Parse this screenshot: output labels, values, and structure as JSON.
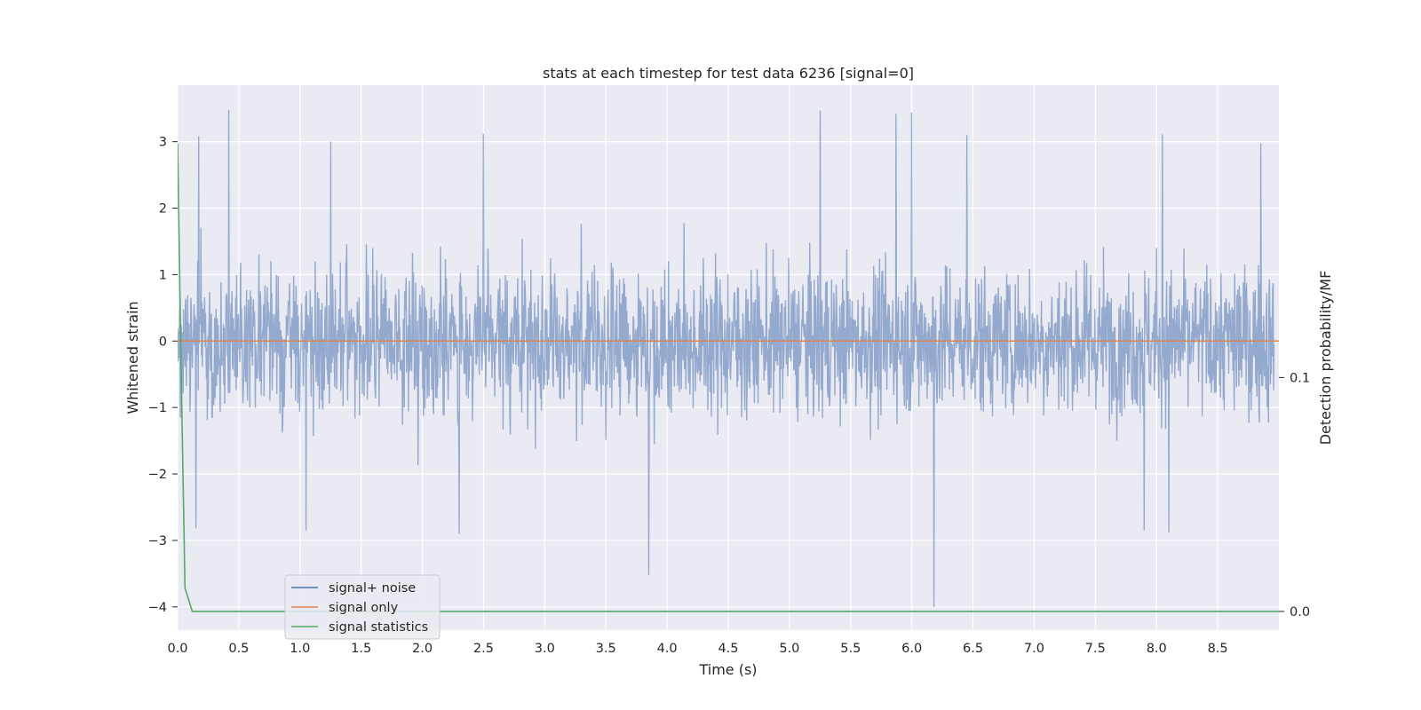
{
  "chart_data": {
    "type": "line",
    "title": "stats at each timestep for test data 6236 [signal=0]",
    "xlabel": "Time (s)",
    "ylabel": "Whitened strain",
    "y2label": "Detection probability/MF",
    "xlim": [
      0.0,
      9.0
    ],
    "ylim": [
      -4.35,
      3.85
    ],
    "y2lim": [
      -0.008,
      0.225
    ],
    "xticks": [
      "0.0",
      "0.5",
      "1.0",
      "1.5",
      "2.0",
      "2.5",
      "3.0",
      "3.5",
      "4.0",
      "4.5",
      "5.0",
      "5.5",
      "6.0",
      "6.5",
      "7.0",
      "7.5",
      "8.0",
      "8.5"
    ],
    "yticks": [
      "3",
      "2",
      "1",
      "0",
      "−1",
      "−2",
      "−3",
      "−4"
    ],
    "y2ticks": [
      "0.1",
      "0.0"
    ],
    "grid": true,
    "legend_position": "lower-left",
    "series": [
      {
        "name": "signal+ noise",
        "color": "#4c72b0",
        "axis": "left",
        "n_points": 8192,
        "peaks": [
          {
            "x": 0.42,
            "y": 3.48
          },
          {
            "x": 0.17,
            "y": 3.08
          },
          {
            "x": 1.25,
            "y": 3.0
          },
          {
            "x": 2.5,
            "y": 3.12
          },
          {
            "x": 5.25,
            "y": 3.47
          },
          {
            "x": 5.87,
            "y": 3.42
          },
          {
            "x": 6.45,
            "y": 3.1
          },
          {
            "x": 6.0,
            "y": 3.44
          },
          {
            "x": 8.05,
            "y": 3.11
          },
          {
            "x": 8.85,
            "y": 2.97
          }
        ],
        "troughs": [
          {
            "x": 0.15,
            "y": -2.82
          },
          {
            "x": 1.05,
            "y": -2.85
          },
          {
            "x": 2.3,
            "y": -2.9
          },
          {
            "x": 3.85,
            "y": -3.52
          },
          {
            "x": 6.18,
            "y": -4.0
          },
          {
            "x": 7.9,
            "y": -2.85
          },
          {
            "x": 8.1,
            "y": -2.88
          }
        ]
      },
      {
        "name": "signal only",
        "color": "#dd8452",
        "axis": "left",
        "x": [
          0.0,
          9.0
        ],
        "y": [
          0.0,
          0.0
        ]
      },
      {
        "name": "signal statistics",
        "color": "#55a868",
        "axis": "right",
        "x": [
          0.0,
          0.03,
          0.06,
          0.12,
          9.0
        ],
        "y": [
          0.2,
          0.1,
          0.01,
          0.0,
          0.0
        ]
      }
    ]
  }
}
